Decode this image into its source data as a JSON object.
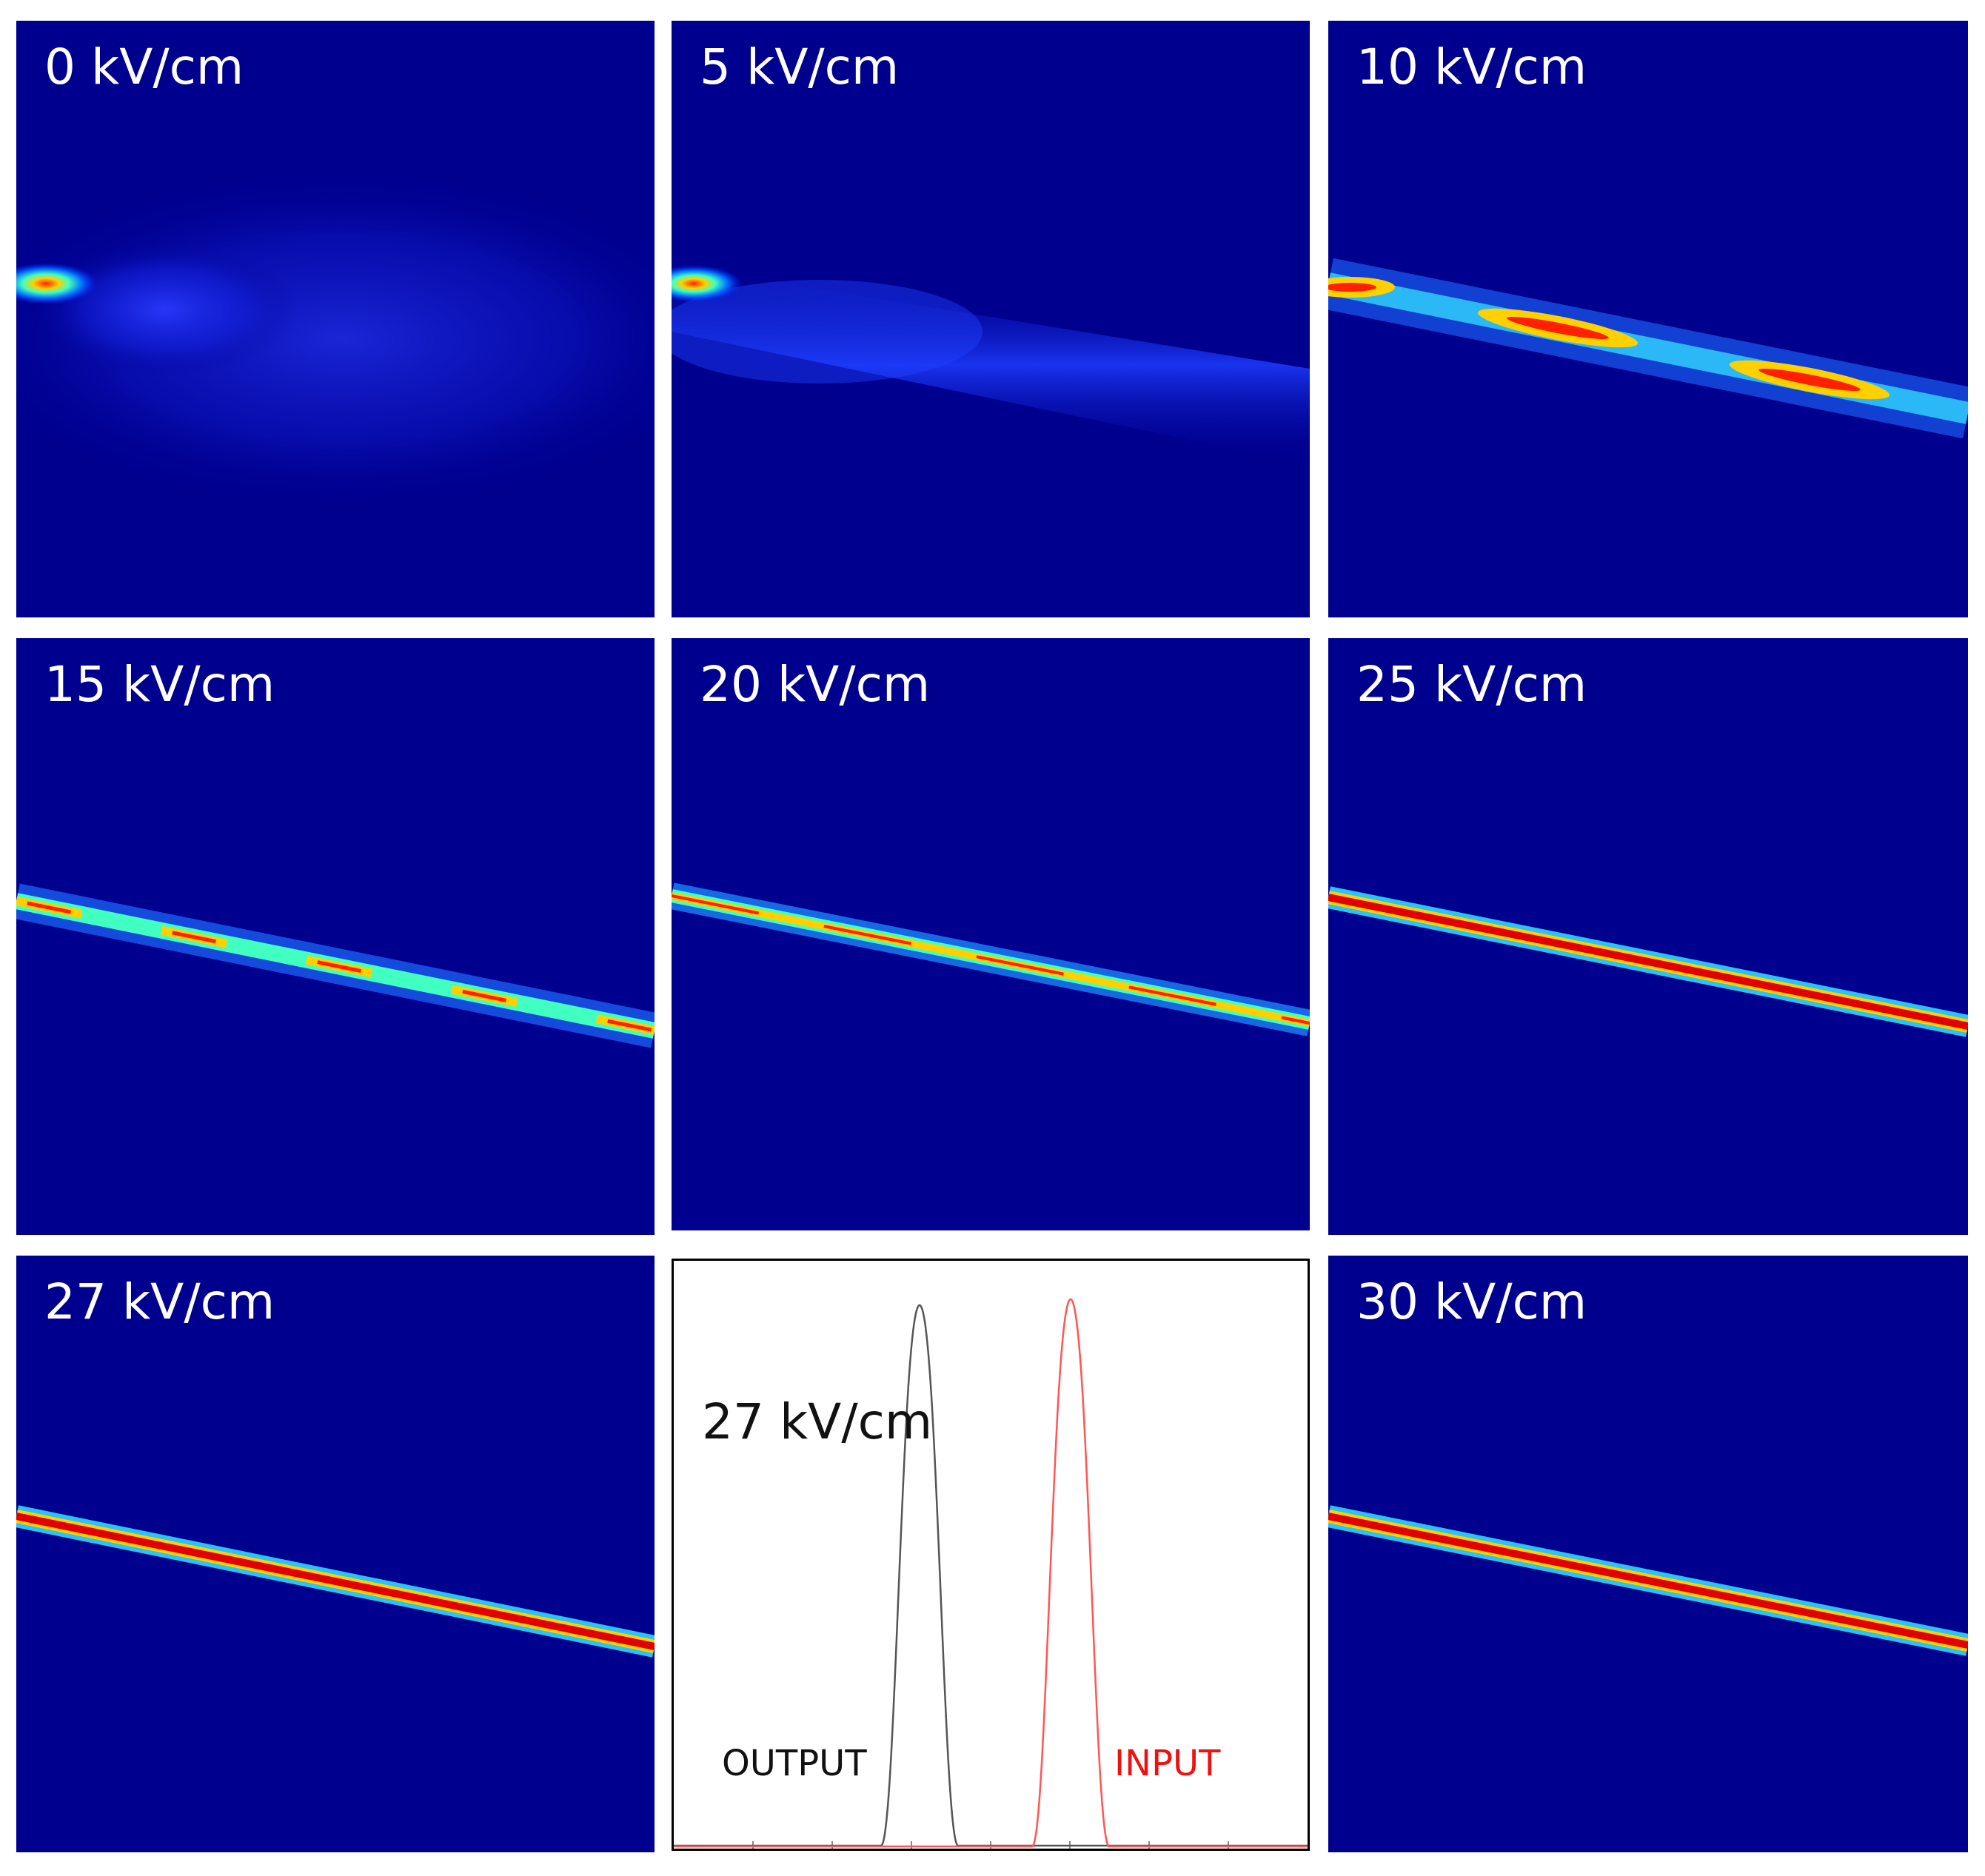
{
  "figure": {
    "panels": [
      {
        "label": "0 kV/cm"
      },
      {
        "label": "5 kV/cm"
      },
      {
        "label": "10 kV/cm"
      },
      {
        "label": "15 kV/cm"
      },
      {
        "label": "20 kV/cm"
      },
      {
        "label": "25 kV/cm"
      },
      {
        "label": "27 kV/cm"
      },
      {
        "label": "27 kV/cm",
        "output_label": "OUTPUT",
        "input_label": "INPUT"
      },
      {
        "label": "30 kV/cm"
      }
    ],
    "colors": {
      "background": "#00008f",
      "output_pulse": "#555555",
      "input_pulse": "#ff5555"
    }
  },
  "chart_data": {
    "type": "line",
    "series": [
      {
        "name": "OUTPUT",
        "color": "#555555"
      },
      {
        "name": "INPUT",
        "color": "#ff5555"
      }
    ]
  }
}
